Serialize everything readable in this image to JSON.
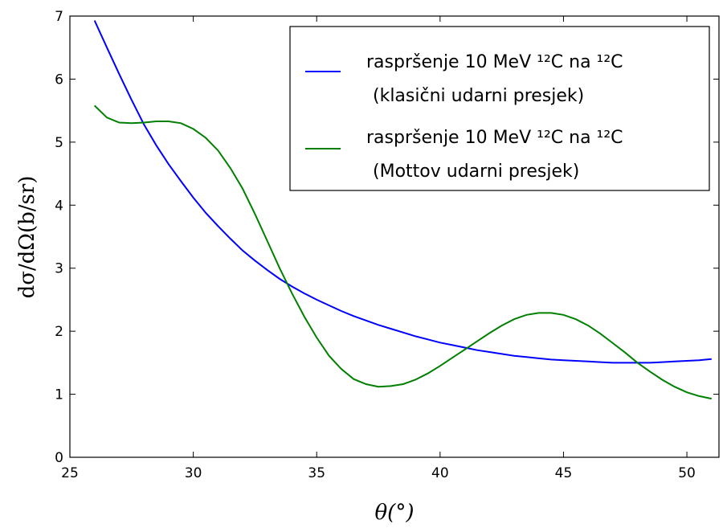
{
  "chart_data": {
    "type": "line",
    "xlabel": "θ(°)",
    "ylabel": "dσ/dΩ(b/sr)",
    "xlim": [
      25,
      51.3
    ],
    "ylim": [
      0,
      7
    ],
    "xticks": [
      "25",
      "30",
      "35",
      "40",
      "45",
      "50"
    ],
    "yticks": [
      "0",
      "1",
      "2",
      "3",
      "4",
      "5",
      "6",
      "7"
    ],
    "legend_position": "top-right",
    "series": [
      {
        "legend_line1": "raspršenje 10 MeV ¹²C na ¹²C",
        "legend_line2": "(klasični udarni presjek)",
        "color": "#0000ff",
        "x": [
          26,
          26.5,
          27,
          27.5,
          28,
          28.5,
          29,
          29.5,
          30,
          30.5,
          31,
          31.5,
          32,
          32.5,
          33,
          33.5,
          34,
          34.5,
          35,
          35.5,
          36,
          36.5,
          37,
          37.5,
          38,
          38.5,
          39,
          39.5,
          40,
          40.5,
          41,
          41.5,
          42,
          42.5,
          43,
          43.5,
          44,
          44.5,
          45,
          45.5,
          46,
          46.5,
          47,
          47.5,
          48,
          48.5,
          49,
          49.5,
          50,
          50.5,
          51
        ],
        "y": [
          6.93,
          6.5,
          6.08,
          5.67,
          5.28,
          4.95,
          4.65,
          4.38,
          4.12,
          3.88,
          3.67,
          3.47,
          3.28,
          3.12,
          2.97,
          2.83,
          2.71,
          2.6,
          2.5,
          2.41,
          2.32,
          2.24,
          2.17,
          2.1,
          2.04,
          1.98,
          1.92,
          1.87,
          1.82,
          1.78,
          1.74,
          1.7,
          1.67,
          1.64,
          1.61,
          1.59,
          1.57,
          1.55,
          1.54,
          1.53,
          1.52,
          1.51,
          1.5,
          1.5,
          1.5,
          1.5,
          1.51,
          1.52,
          1.53,
          1.54,
          1.56
        ]
      },
      {
        "legend_line1": "raspršenje 10 MeV ¹²C na ¹²C",
        "legend_line2": "(Mottov udarni presjek)",
        "color": "#008000",
        "x": [
          26,
          26.5,
          27,
          27.5,
          28,
          28.5,
          29,
          29.5,
          30,
          30.5,
          31,
          31.5,
          32,
          32.5,
          33,
          33.5,
          34,
          34.5,
          35,
          35.5,
          36,
          36.5,
          37,
          37.5,
          38,
          38.5,
          39,
          39.5,
          40,
          40.5,
          41,
          41.5,
          42,
          42.5,
          43,
          43.5,
          44,
          44.5,
          45,
          45.5,
          46,
          46.5,
          47,
          47.5,
          48,
          48.5,
          49,
          49.5,
          50,
          50.5,
          51
        ],
        "y": [
          5.58,
          5.39,
          5.31,
          5.3,
          5.31,
          5.33,
          5.33,
          5.3,
          5.21,
          5.07,
          4.87,
          4.59,
          4.26,
          3.86,
          3.43,
          3.0,
          2.6,
          2.23,
          1.9,
          1.61,
          1.4,
          1.24,
          1.16,
          1.12,
          1.13,
          1.16,
          1.23,
          1.33,
          1.45,
          1.58,
          1.71,
          1.84,
          1.97,
          2.09,
          2.19,
          2.26,
          2.29,
          2.29,
          2.26,
          2.19,
          2.09,
          1.96,
          1.81,
          1.66,
          1.5,
          1.36,
          1.23,
          1.12,
          1.03,
          0.97,
          0.93
        ]
      }
    ]
  }
}
